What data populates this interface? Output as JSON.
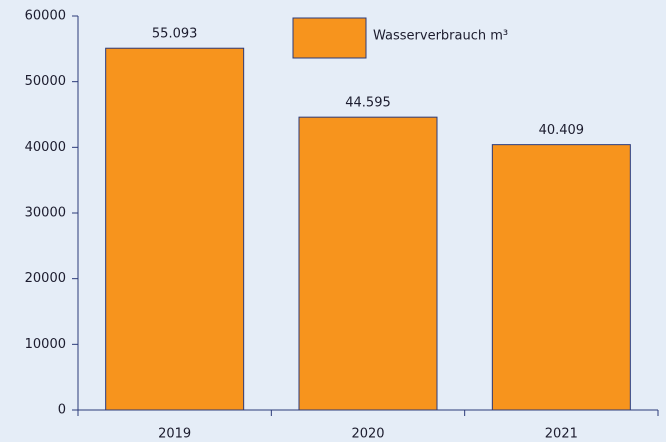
{
  "chart_data": {
    "type": "bar",
    "categories": [
      "2019",
      "2020",
      "2021"
    ],
    "series": [
      {
        "name": "Wasserverbrauch m³",
        "color": "#f7941d",
        "values": [
          55093,
          44595,
          40409
        ],
        "value_labels": [
          "55.093",
          "44.595",
          "40.409"
        ]
      }
    ],
    "ylim": [
      0,
      60000
    ],
    "yticks": [
      0,
      10000,
      20000,
      30000,
      40000,
      50000,
      60000
    ],
    "legend": "top"
  }
}
